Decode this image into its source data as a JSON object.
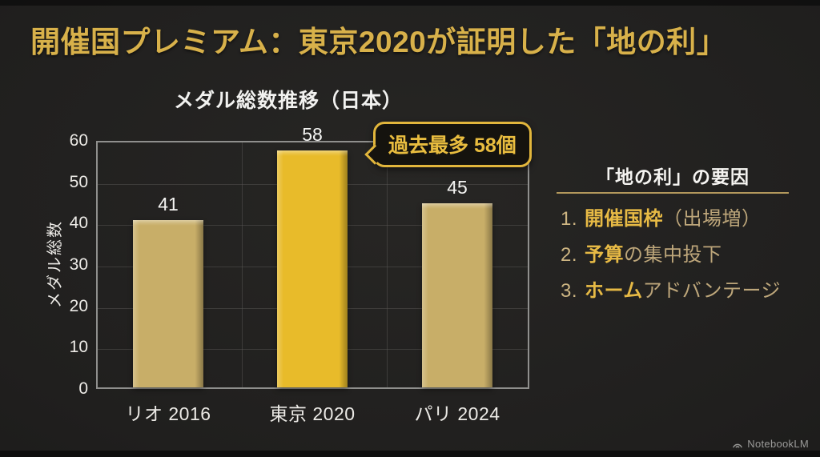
{
  "slide": {
    "title": "開催国プレミアム：東京2020が証明した「地の利」"
  },
  "chart_data": {
    "type": "bar",
    "title": "メダル総数推移（日本）",
    "categories": [
      "リオ 2016",
      "東京 2020",
      "パリ 2024"
    ],
    "values": [
      41,
      58,
      45
    ],
    "xlabel": "",
    "ylabel": "メダル総数",
    "ylim": [
      0,
      60
    ],
    "yticks": [
      0,
      10,
      20,
      30,
      40,
      50,
      60
    ],
    "grid": true,
    "legend": "none",
    "bar_colors": [
      "#c8ae68",
      "#e8bb2a",
      "#c8ae68"
    ],
    "annotation": {
      "text": "過去最多 58個",
      "target": "東京 2020"
    }
  },
  "panel": {
    "heading": "「地の利」の要因",
    "items": [
      {
        "num": "1.",
        "bold": "開催国枠",
        "rest": "（出場増）"
      },
      {
        "num": "2.",
        "bold": "予算",
        "rest": "の集中投下"
      },
      {
        "num": "3.",
        "bold": "ホーム",
        "rest": "アドバンテージ"
      }
    ]
  },
  "footer": {
    "brand": "NotebookLM"
  },
  "colors": {
    "background": "#201f1e",
    "title_gold": "#d8b14a",
    "bar_tan": "#c8ae68",
    "bar_gold": "#e8bb2a",
    "callout_gold": "#e2b63c",
    "text_white": "#f2f2f0",
    "text_tan": "#bda67a",
    "grid": "#575653",
    "brand_gray": "#9a9a98"
  }
}
